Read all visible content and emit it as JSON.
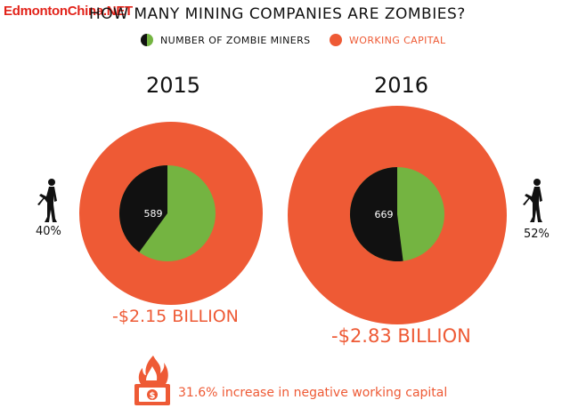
{
  "watermark": "EdmontonChina.NET",
  "title": "HOW MANY MINING COMPANIES ARE ZOMBIES?",
  "legend": {
    "zombie_label": "NUMBER OF ZOMBIE MINERS",
    "capital_label": "WORKING CAPITAL"
  },
  "colors": {
    "working_capital": "#ee5a35",
    "zombie": "#111111",
    "non_zombie": "#74b441",
    "text": "#111111"
  },
  "chart_data": [
    {
      "type": "pie",
      "year": "2015",
      "zombie_count": 589,
      "zombie_count_label": "589",
      "zombie_share_label": "40%",
      "zombie_share": 0.4,
      "working_capital_label": "-$2.15 BILLION",
      "working_capital_billion": -2.15
    },
    {
      "type": "pie",
      "year": "2016",
      "zombie_count": 669,
      "zombie_count_label": "669",
      "zombie_share_label": "52%",
      "zombie_share": 0.52,
      "working_capital_label": "-$2.83 BILLION",
      "working_capital_billion": -2.83
    }
  ],
  "footer": {
    "text": "31.6% increase in negative working capital",
    "icon": "burning-money-icon"
  }
}
